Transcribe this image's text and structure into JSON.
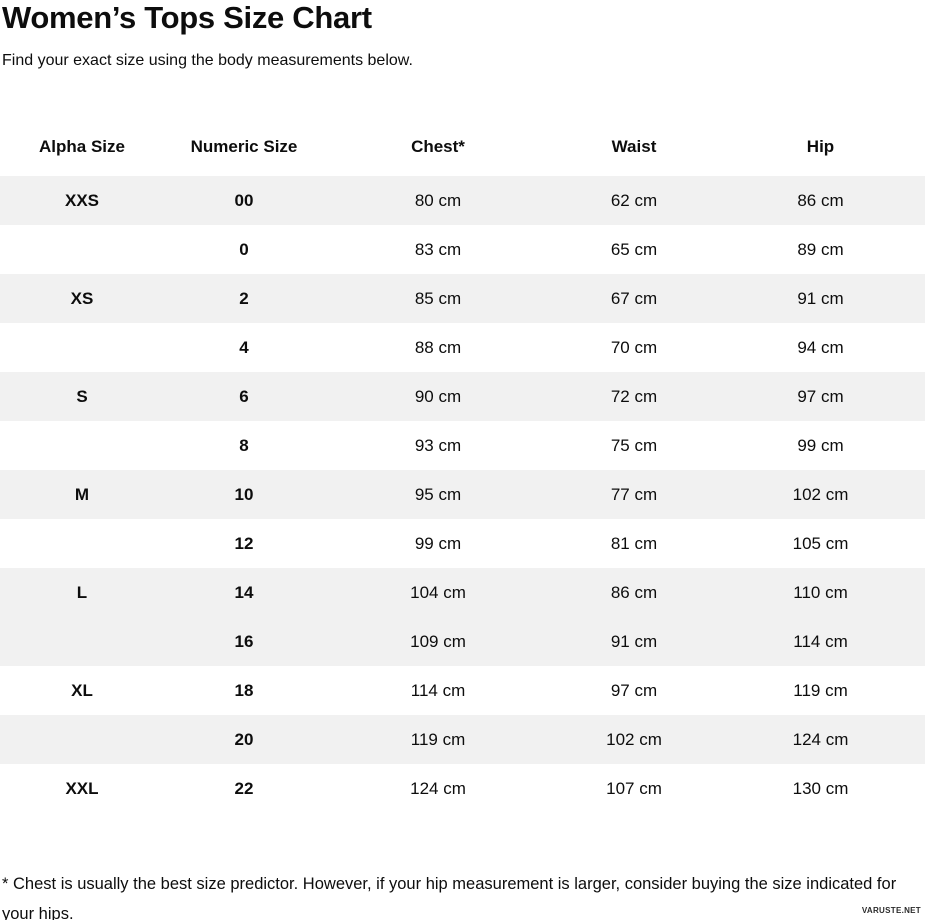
{
  "page": {
    "title": "Women’s Tops Size Chart",
    "subtitle": "Find your exact size using the body measurements below."
  },
  "table": {
    "columns": [
      {
        "label": "Alpha Size"
      },
      {
        "label": "Numeric Size"
      },
      {
        "label": "Chest*"
      },
      {
        "label": "Waist"
      },
      {
        "label": "Hip"
      }
    ],
    "rows": [
      {
        "alpha": "XXS",
        "numeric": "00",
        "chest": "80 cm",
        "waist": "62 cm",
        "hip": "86 cm",
        "shaded": true
      },
      {
        "alpha": "",
        "numeric": "0",
        "chest": "83 cm",
        "waist": "65 cm",
        "hip": "89 cm",
        "shaded": false
      },
      {
        "alpha": "XS",
        "numeric": "2",
        "chest": "85 cm",
        "waist": "67 cm",
        "hip": "91 cm",
        "shaded": true
      },
      {
        "alpha": "",
        "numeric": "4",
        "chest": "88 cm",
        "waist": "70 cm",
        "hip": "94 cm",
        "shaded": false
      },
      {
        "alpha": "S",
        "numeric": "6",
        "chest": "90 cm",
        "waist": "72 cm",
        "hip": "97 cm",
        "shaded": true
      },
      {
        "alpha": "",
        "numeric": "8",
        "chest": "93 cm",
        "waist": "75 cm",
        "hip": "99 cm",
        "shaded": false
      },
      {
        "alpha": "M",
        "numeric": "10",
        "chest": "95 cm",
        "waist": "77 cm",
        "hip": "102 cm",
        "shaded": true
      },
      {
        "alpha": "",
        "numeric": "12",
        "chest": "99 cm",
        "waist": "81 cm",
        "hip": "105 cm",
        "shaded": false
      },
      {
        "alpha": "L",
        "numeric": "14",
        "chest": "104 cm",
        "waist": "86 cm",
        "hip": "110 cm",
        "shaded": true
      },
      {
        "alpha": "",
        "numeric": "16",
        "chest": "109 cm",
        "waist": "91 cm",
        "hip": "114 cm",
        "shaded": true
      },
      {
        "alpha": "XL",
        "numeric": "18",
        "chest": "114 cm",
        "waist": "97 cm",
        "hip": "119 cm",
        "shaded": false
      },
      {
        "alpha": "",
        "numeric": "20",
        "chest": "119 cm",
        "waist": "102 cm",
        "hip": "124 cm",
        "shaded": true
      },
      {
        "alpha": "XXL",
        "numeric": "22",
        "chest": "124 cm",
        "waist": "107 cm",
        "hip": "130 cm",
        "shaded": false
      }
    ]
  },
  "footnote": "* Chest is usually the best size predictor. However, if your hip measurement is larger, consider buying the size indicated for your hips.",
  "watermark": "VARUSTE.NET",
  "colors": {
    "row_shaded": "#f1f1f1",
    "text": "#0d0d0d",
    "background": "#ffffff"
  }
}
